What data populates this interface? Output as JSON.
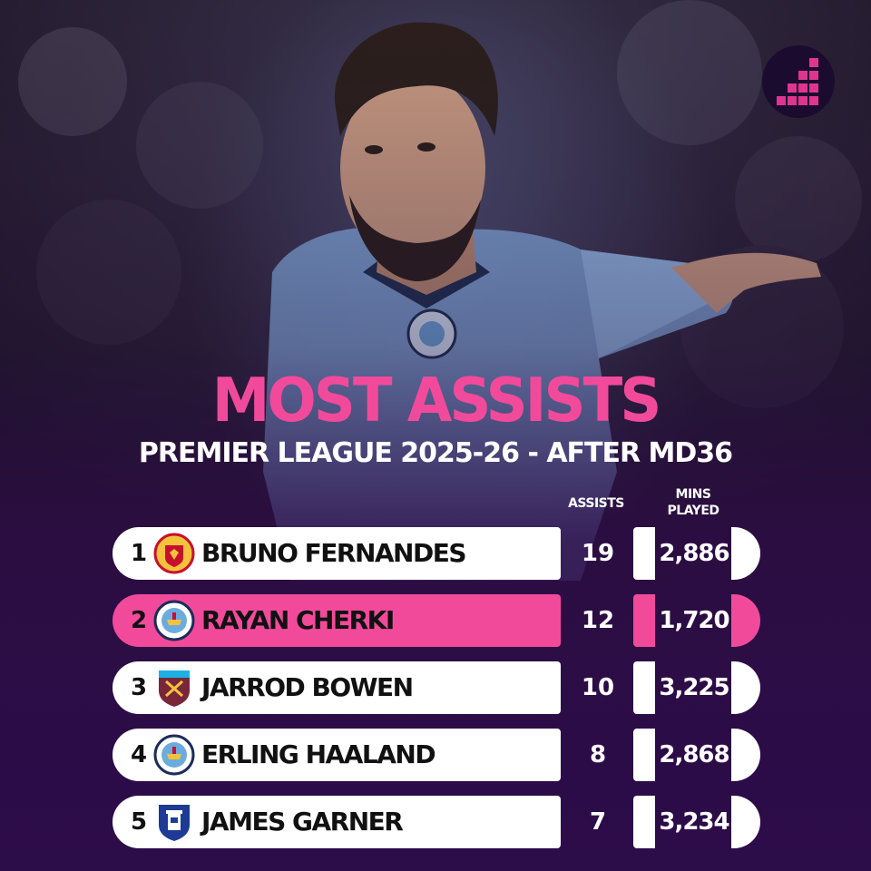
{
  "title": "MOST ASSISTS",
  "subtitle": "PREMIER LEAGUE 2025-26 - AFTER MD36",
  "colors": {
    "accent": "#f24a9b",
    "row_bg": "#ffffff",
    "text_dark": "#111111",
    "background": "#2d0c4a"
  },
  "logo_icon": "stats-logo-icon",
  "chart_data": {
    "type": "table",
    "columns": [
      "ASSISTS",
      "MINS\nPLAYED"
    ],
    "column_labels": {
      "assists": "ASSISTS",
      "mins_line1": "MINS",
      "mins_line2": "PLAYED"
    },
    "rows": [
      {
        "rank": "1",
        "player": "BRUNO FERNANDES",
        "club_icon": "manchester-united-crest-icon",
        "assists": "19",
        "mins_played": "2,886",
        "highlight": false
      },
      {
        "rank": "2",
        "player": "RAYAN CHERKI",
        "club_icon": "manchester-city-crest-icon",
        "assists": "12",
        "mins_played": "1,720",
        "highlight": true
      },
      {
        "rank": "3",
        "player": "JARROD BOWEN",
        "club_icon": "west-ham-united-crest-icon",
        "assists": "10",
        "mins_played": "3,225",
        "highlight": false
      },
      {
        "rank": "4",
        "player": "ERLING HAALAND",
        "club_icon": "manchester-city-crest-icon",
        "assists": "8",
        "mins_played": "2,868",
        "highlight": false
      },
      {
        "rank": "5",
        "player": "JAMES GARNER",
        "club_icon": "everton-crest-icon",
        "assists": "7",
        "mins_played": "3,234",
        "highlight": false
      }
    ]
  }
}
